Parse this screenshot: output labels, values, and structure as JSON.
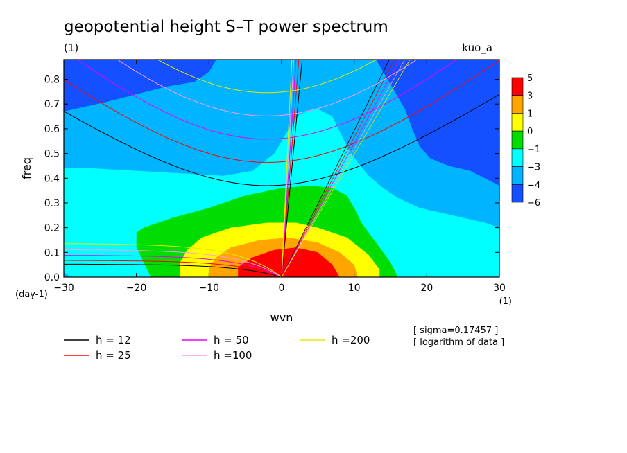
{
  "chart_data": {
    "type": "heatmap",
    "title": "geopotential height S–T power spectrum",
    "subtitle_left": "(1)",
    "subtitle_right": "kuo_a",
    "xlabel": "wvn",
    "ylabel": "freq",
    "x_unit": "(1)",
    "y_unit": "(day-1)",
    "xlim": [
      -30,
      30
    ],
    "ylim": [
      0,
      0.88
    ],
    "x_ticks": [
      -30,
      -20,
      -10,
      0,
      10,
      20,
      30
    ],
    "x_tick_labels": [
      "−30",
      "−20",
      "−10",
      "0",
      "10",
      "20",
      "30"
    ],
    "y_ticks": [
      0.0,
      0.1,
      0.2,
      0.3,
      0.4,
      0.5,
      0.6,
      0.7,
      0.8
    ],
    "y_tick_labels": [
      "0.0",
      "0.1",
      "0.2",
      "0.3",
      "0.4",
      "0.5",
      "0.6",
      "0.7",
      "0.8"
    ],
    "colorbar": {
      "labels": [
        "5",
        "3",
        "1",
        "0",
        "−1",
        "−3",
        "−4",
        "−6"
      ],
      "colors": [
        "#ff0000",
        "#ffa500",
        "#ffff00",
        "#00dd00",
        "#00ffff",
        "#00b4ff",
        "#1450ff"
      ]
    },
    "field_layers": [
      {
        "color": "#1450ff",
        "points": [
          [
            -30,
            0
          ],
          [
            -30,
            0.88
          ],
          [
            30,
            0.88
          ],
          [
            30,
            0
          ]
        ]
      },
      {
        "color": "#00b4ff",
        "points": [
          [
            -30,
            0
          ],
          [
            -30,
            0.67
          ],
          [
            -24,
            0.71
          ],
          [
            -16,
            0.77
          ],
          [
            -12,
            0.79
          ],
          [
            -10,
            0.83
          ],
          [
            -9,
            0.88
          ],
          [
            13,
            0.88
          ],
          [
            15,
            0.78
          ],
          [
            17,
            0.68
          ],
          [
            18,
            0.6
          ],
          [
            19,
            0.53
          ],
          [
            20.5,
            0.48
          ],
          [
            23,
            0.45
          ],
          [
            26,
            0.43
          ],
          [
            28,
            0.4
          ],
          [
            30,
            0.37
          ],
          [
            30,
            0
          ]
        ]
      },
      {
        "color": "#00ffff",
        "points": [
          [
            -29,
            0
          ],
          [
            -30,
            0.02
          ],
          [
            -30,
            0.44
          ],
          [
            -26,
            0.44
          ],
          [
            -20,
            0.43
          ],
          [
            -14,
            0.42
          ],
          [
            -8,
            0.41
          ],
          [
            -4,
            0.43
          ],
          [
            -1,
            0.5
          ],
          [
            1,
            0.6
          ],
          [
            2.5,
            0.66
          ],
          [
            5,
            0.68
          ],
          [
            7,
            0.65
          ],
          [
            8,
            0.59
          ],
          [
            9.5,
            0.5
          ],
          [
            12,
            0.41
          ],
          [
            14,
            0.36
          ],
          [
            16,
            0.32
          ],
          [
            19,
            0.28
          ],
          [
            22,
            0.26
          ],
          [
            25,
            0.24
          ],
          [
            28,
            0.22
          ],
          [
            30,
            0.2
          ],
          [
            30,
            0
          ]
        ]
      },
      {
        "color": "#00dd00",
        "points": [
          [
            -18,
            0
          ],
          [
            -20,
            0.12
          ],
          [
            -20,
            0.18
          ],
          [
            -19,
            0.2
          ],
          [
            -15,
            0.24
          ],
          [
            -10,
            0.28
          ],
          [
            -5,
            0.33
          ],
          [
            0,
            0.36
          ],
          [
            4,
            0.37
          ],
          [
            7,
            0.36
          ],
          [
            9,
            0.33
          ],
          [
            10,
            0.28
          ],
          [
            11,
            0.22
          ],
          [
            13,
            0.14
          ],
          [
            15,
            0.06
          ],
          [
            16,
            0
          ]
        ]
      },
      {
        "color": "#ffff00",
        "points": [
          [
            -14,
            0
          ],
          [
            -14,
            0.06
          ],
          [
            -13,
            0.11
          ],
          [
            -11,
            0.16
          ],
          [
            -7,
            0.2
          ],
          [
            -2,
            0.22
          ],
          [
            2,
            0.22
          ],
          [
            5,
            0.2
          ],
          [
            9,
            0.16
          ],
          [
            12,
            0.09
          ],
          [
            13.5,
            0.03
          ],
          [
            13.5,
            0
          ]
        ]
      },
      {
        "color": "#ffa500",
        "points": [
          [
            -10,
            0
          ],
          [
            -10,
            0.04
          ],
          [
            -9,
            0.08
          ],
          [
            -7,
            0.12
          ],
          [
            -3,
            0.15
          ],
          [
            1,
            0.16
          ],
          [
            5,
            0.14
          ],
          [
            8,
            0.1
          ],
          [
            10,
            0.05
          ],
          [
            10.5,
            0
          ]
        ]
      },
      {
        "color": "#ff0000",
        "points": [
          [
            -6,
            0
          ],
          [
            -6,
            0.04
          ],
          [
            -4,
            0.08
          ],
          [
            -1,
            0.11
          ],
          [
            2,
            0.12
          ],
          [
            5,
            0.1
          ],
          [
            7,
            0.05
          ],
          [
            8,
            0
          ]
        ]
      }
    ],
    "dispersion_curves": [
      {
        "name": "h = 12",
        "label": "h = 12",
        "color": "#000000",
        "ke": 0.3718,
        "km": 0.0526
      },
      {
        "name": "h = 25",
        "label": "h = 25",
        "color": "#ff0000",
        "ke": 0.4448,
        "km": 0.0677
      },
      {
        "name": "h = 50",
        "label": "h = 50",
        "color": "#ee00ee",
        "ke": 0.5289,
        "km": 0.0886
      },
      {
        "name": "h =100",
        "label": "h =100",
        "color": "#ff99ee",
        "ke": 0.6289,
        "km": 0.1114
      },
      {
        "name": "h =200",
        "label": "h =200",
        "color": "#e8e800",
        "ke": 0.7478,
        "km": 0.1361
      }
    ],
    "annotations": [
      "[ sigma=0.17457 ]",
      "[ logarithm of data ]"
    ],
    "legend_placement": "bottom-left"
  }
}
